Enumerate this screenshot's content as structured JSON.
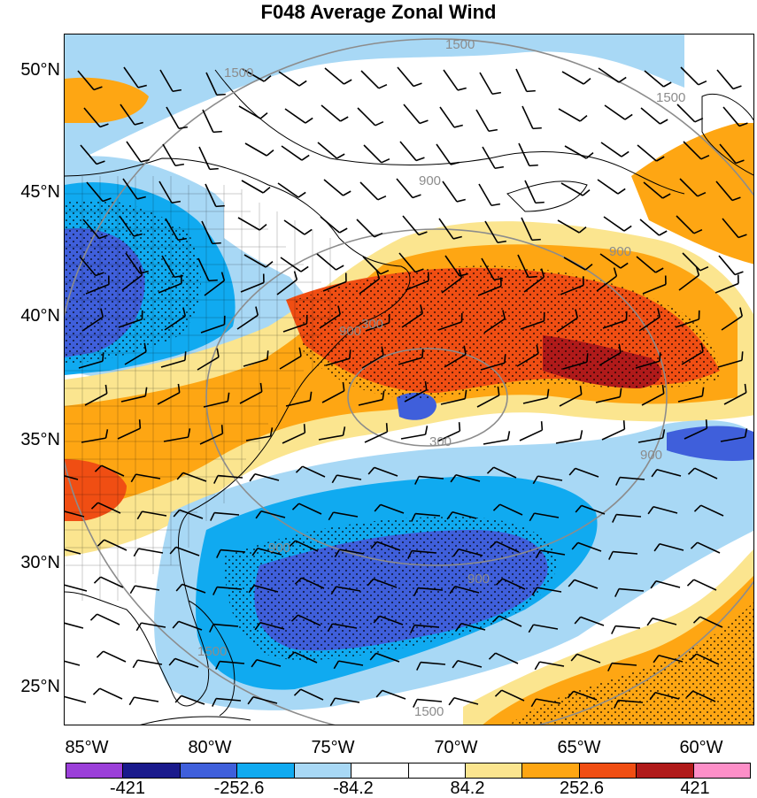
{
  "title": "F048 Average Zonal Wind",
  "latitude_labels": [
    "50°N",
    "45°N",
    "40°N",
    "35°N",
    "30°N",
    "25°N"
  ],
  "longitude_labels": [
    "85°W",
    "80°W",
    "75°W",
    "70°W",
    "65°W",
    "60°W"
  ],
  "contour_labels": [
    "1500",
    "1500",
    "1500",
    "1500",
    "1500",
    "900",
    "900",
    "900",
    "900",
    "900",
    "900",
    "300",
    "300"
  ],
  "colorbar": {
    "colors": [
      "#9b3fd9",
      "#1a1a8c",
      "#3f5fdb",
      "#10aaf0",
      "#a8d8f5",
      "#ffffff",
      "#ffffff",
      "#fbe58f",
      "#fea613",
      "#f04e13",
      "#b01a1a",
      "#fd8fc8"
    ],
    "labels": [
      "-421",
      "-252.6",
      "-84.2",
      "84.2",
      "252.6",
      "421"
    ]
  },
  "map_palette": {
    "land_border": "#000000",
    "contour_line": "#8c8c8c",
    "barb": "#000000"
  }
}
